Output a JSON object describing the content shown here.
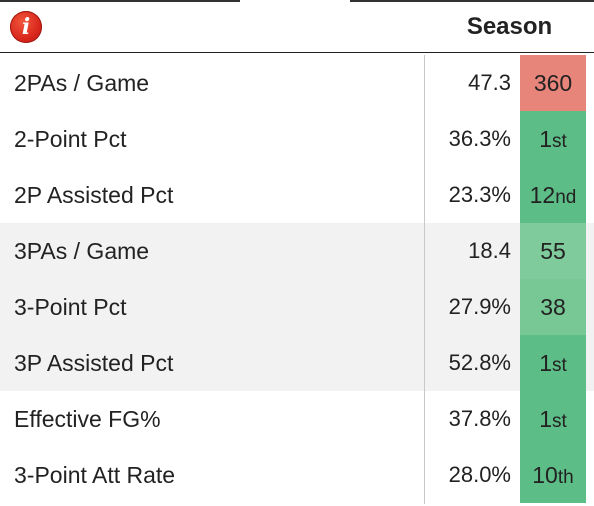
{
  "header": {
    "info_icon_glyph": "i",
    "season_label": "Season"
  },
  "colors": {
    "rank_bad": "#e8857a",
    "rank_top": "#5dbd87",
    "rank_good": "#7fcb9b"
  },
  "rows": [
    {
      "label": "2PAs / Game",
      "value": "47.3",
      "rank_num": "360",
      "rank_suffix": "",
      "color": "#e8857a"
    },
    {
      "label": "2-Point Pct",
      "value": "36.3%",
      "rank_num": "1",
      "rank_suffix": "st",
      "color": "#5dbd87"
    },
    {
      "label": "2P Assisted Pct",
      "value": "23.3%",
      "rank_num": "12",
      "rank_suffix": "nd",
      "color": "#5dbd87"
    },
    {
      "label": "3PAs / Game",
      "value": "18.4",
      "rank_num": "55",
      "rank_suffix": "",
      "color": "#7fcb9b"
    },
    {
      "label": "3-Point Pct",
      "value": "27.9%",
      "rank_num": "38",
      "rank_suffix": "",
      "color": "#78c896"
    },
    {
      "label": "3P Assisted Pct",
      "value": "52.8%",
      "rank_num": "1",
      "rank_suffix": "st",
      "color": "#5dbd87"
    },
    {
      "label": "Effective FG%",
      "value": "37.8%",
      "rank_num": "1",
      "rank_suffix": "st",
      "color": "#5dbd87"
    },
    {
      "label": "3-Point Att Rate",
      "value": "28.0%",
      "rank_num": "10",
      "rank_suffix": "th",
      "color": "#5dbd87"
    }
  ]
}
